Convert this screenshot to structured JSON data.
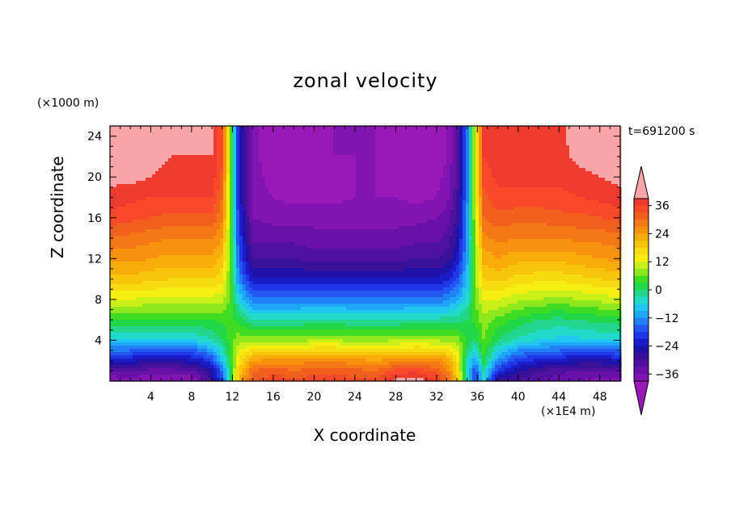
{
  "title": "zonal velocity",
  "z_scale_note": "(×1000 m)",
  "time_label": "t=691200 s",
  "x_scale_note": "(×1E4 m)",
  "chart_data": {
    "type": "heatmap",
    "title": "zonal velocity",
    "xlabel": "X coordinate",
    "ylabel": "Z coordinate",
    "xlim": [
      0,
      50
    ],
    "ylim": [
      0,
      25
    ],
    "x_ticks": [
      "4",
      "8",
      "12",
      "16",
      "20",
      "24",
      "28",
      "32",
      "36",
      "40",
      "44",
      "48"
    ],
    "y_ticks": [
      "4",
      "8",
      "12",
      "16",
      "20",
      "24"
    ],
    "colorbar": {
      "labels": [
        "36",
        "24",
        "12",
        "0",
        "−12",
        "−24",
        "−36"
      ],
      "levels": [
        42,
        39,
        36,
        33,
        30,
        27,
        24,
        21,
        18,
        15,
        12,
        9,
        6,
        3,
        0,
        -3,
        -6,
        -9,
        -12,
        -15,
        -18,
        -21,
        -24,
        -27,
        -30,
        -33,
        -36,
        -39,
        -42
      ],
      "colors": [
        "#f9a5a8",
        "#ee3a2f",
        "#f84a28",
        "#f2601e",
        "#f57816",
        "#f8920e",
        "#f8ac0a",
        "#f8c40c",
        "#f6dc10",
        "#f4ee12",
        "#caf01a",
        "#8ee61c",
        "#40dc22",
        "#22d848",
        "#22d68e",
        "#22dac8",
        "#22c6f0",
        "#20a6f6",
        "#2280f6",
        "#2258f0",
        "#1e38e8",
        "#1a1cc8",
        "#1e12a8",
        "#3a129a",
        "#5010a0",
        "#6a10aa",
        "#8214b2",
        "#9818b8"
      ]
    },
    "x_columns": [
      0,
      2,
      4,
      6,
      8,
      9,
      10,
      11,
      11.8,
      12.6,
      14,
      16,
      18,
      20,
      22,
      24,
      26,
      28,
      30,
      32,
      33,
      34,
      35,
      35.8,
      36.6,
      38,
      40,
      42,
      44,
      46,
      48,
      50
    ],
    "z_rows": [
      0,
      1,
      2,
      3,
      4,
      6,
      8,
      10,
      12,
      14,
      16,
      18,
      20,
      22,
      25
    ],
    "values": [
      [
        -39,
        -38,
        -39,
        -39,
        -39,
        -36,
        -28,
        -18,
        0,
        20,
        33,
        35,
        34,
        35,
        35,
        34,
        34,
        40,
        42,
        36,
        30,
        20,
        -5,
        -20,
        -5,
        -30,
        -30,
        -33,
        -35,
        -36,
        -38,
        -38
      ],
      [
        -33,
        -33,
        -34,
        -34,
        -33,
        -30,
        -25,
        -15,
        0,
        18,
        30,
        32,
        30,
        32,
        32,
        31,
        30,
        34,
        35,
        32,
        28,
        18,
        -5,
        -18,
        -3,
        -20,
        -26,
        -30,
        -32,
        -33,
        -33,
        -33
      ],
      [
        -24,
        -24,
        -26,
        -26,
        -24,
        -22,
        -18,
        -8,
        2,
        15,
        24,
        25,
        25,
        26,
        26,
        25,
        24,
        26,
        27,
        26,
        24,
        16,
        -3,
        -12,
        2,
        -12,
        -20,
        -22,
        -24,
        -25,
        -25,
        -24
      ],
      [
        -15,
        -15,
        -17,
        -17,
        -16,
        -14,
        -10,
        -4,
        3,
        12,
        16,
        17,
        17,
        18,
        18,
        17,
        16,
        17,
        18,
        17,
        16,
        12,
        0,
        -6,
        4,
        -6,
        -12,
        -14,
        -15,
        -16,
        -16,
        -15
      ],
      [
        -6,
        -6,
        -7,
        -7,
        -6,
        -5,
        -3,
        0,
        4,
        8,
        8,
        8,
        8,
        9,
        9,
        8,
        8,
        9,
        9,
        9,
        8,
        8,
        2,
        -1,
        6,
        0,
        -4,
        -6,
        -7,
        -7,
        -6,
        -6
      ],
      [
        3,
        3,
        3,
        3,
        3,
        3,
        3,
        4,
        4,
        2,
        -3,
        -3,
        -3,
        -2,
        -2,
        -3,
        -3,
        -3,
        -2,
        -2,
        -2,
        -1,
        0,
        4,
        8,
        5,
        2,
        0,
        -1,
        0,
        1,
        2
      ],
      [
        12,
        12,
        11,
        11,
        11,
        11,
        11,
        10,
        5,
        -6,
        -14,
        -14,
        -14,
        -14,
        -14,
        -14,
        -14,
        -14,
        -14,
        -14,
        -13,
        -10,
        -5,
        6,
        12,
        12,
        10,
        9,
        8,
        9,
        10,
        11
      ],
      [
        20,
        20,
        19,
        18,
        18,
        18,
        18,
        16,
        5,
        -12,
        -24,
        -24,
        -24,
        -24,
        -24,
        -24,
        -24,
        -24,
        -24,
        -24,
        -22,
        -18,
        -8,
        8,
        18,
        19,
        17,
        16,
        16,
        17,
        18,
        19
      ],
      [
        25,
        25,
        24,
        23,
        23,
        23,
        23,
        20,
        6,
        -16,
        -30,
        -30,
        -30,
        -31,
        -31,
        -31,
        -31,
        -31,
        -30,
        -30,
        -29,
        -24,
        -10,
        8,
        22,
        24,
        22,
        22,
        22,
        23,
        24,
        25
      ],
      [
        30,
        29,
        28,
        27,
        27,
        27,
        27,
        24,
        6,
        -18,
        -34,
        -34,
        -34,
        -35,
        -35,
        -35,
        -35,
        -35,
        -34,
        -34,
        -32,
        -27,
        -12,
        9,
        26,
        28,
        27,
        27,
        27,
        28,
        28,
        29
      ],
      [
        35,
        34,
        33,
        32,
        32,
        32,
        32,
        28,
        7,
        -20,
        -36,
        -37,
        -37,
        -37,
        -37,
        -37,
        -37,
        -37,
        -37,
        -36,
        -35,
        -29,
        -12,
        10,
        30,
        32,
        31,
        31,
        32,
        32,
        33,
        34
      ],
      [
        38,
        37,
        36,
        36,
        36,
        36,
        36,
        30,
        7,
        -22,
        -38,
        -39,
        -40,
        -40,
        -40,
        -39,
        -39,
        -39,
        -40,
        -39,
        -37,
        -31,
        -13,
        11,
        32,
        35,
        35,
        35,
        35,
        36,
        37,
        38
      ],
      [
        40,
        40,
        39,
        38,
        38,
        38,
        38,
        32,
        8,
        -22,
        -38,
        -40,
        -41,
        -40,
        -40,
        -39,
        -39,
        -40,
        -41,
        -40,
        -38,
        -32,
        -14,
        12,
        34,
        37,
        37,
        37,
        37,
        38,
        39,
        40
      ],
      [
        42,
        41,
        40,
        39,
        39,
        39,
        39,
        34,
        8,
        -22,
        -38,
        -41,
        -42,
        -40,
        -39,
        -39,
        -39,
        -41,
        -42,
        -41,
        -39,
        -33,
        -14,
        12,
        36,
        38,
        38,
        38,
        38,
        40,
        41,
        41
      ],
      [
        43,
        42,
        41,
        39,
        39,
        39,
        39,
        34,
        8,
        -22,
        -38,
        -41,
        -42,
        -40,
        -39,
        -39,
        -39,
        -41,
        -42,
        -41,
        -39,
        -33,
        -14,
        12,
        36,
        38,
        38,
        38,
        38,
        41,
        41,
        41
      ]
    ]
  }
}
